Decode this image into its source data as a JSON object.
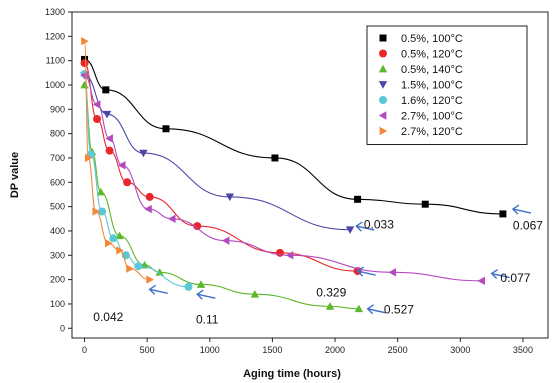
{
  "chart_data": {
    "type": "scatter",
    "xlabel": "Aging time (hours)",
    "ylabel": "DP value",
    "xlim": [
      -100,
      3700
    ],
    "ylim": [
      -40,
      1300
    ],
    "xticks": [
      0,
      500,
      1000,
      1500,
      2000,
      2500,
      3000,
      3500
    ],
    "yticks": [
      0,
      100,
      200,
      300,
      400,
      500,
      600,
      700,
      800,
      900,
      1000,
      1100,
      1200,
      1300
    ],
    "legend_position": "top-right",
    "series": [
      {
        "name": "0.5%, 100°C",
        "color": "#000000",
        "marker": "square",
        "x": [
          0,
          170,
          650,
          1520,
          2180,
          2720,
          3340
        ],
        "y": [
          1105,
          980,
          820,
          700,
          530,
          510,
          470
        ]
      },
      {
        "name": "0.5%, 120°C",
        "color": "#e8262b",
        "marker": "circle",
        "x": [
          0,
          100,
          200,
          340,
          520,
          900,
          1560,
          2180
        ],
        "y": [
          1090,
          860,
          730,
          600,
          540,
          420,
          310,
          235
        ]
      },
      {
        "name": "0.5%, 140°C",
        "color": "#5ab82a",
        "marker": "triangle-up",
        "x": [
          0,
          60,
          130,
          280,
          480,
          600,
          930,
          1360,
          1960,
          2190
        ],
        "y": [
          1000,
          725,
          560,
          380,
          260,
          230,
          180,
          140,
          90,
          80
        ]
      },
      {
        "name": "1.5%, 100°C",
        "color": "#4b47a8",
        "marker": "triangle-down",
        "x": [
          0,
          180,
          470,
          1160,
          2120
        ],
        "y": [
          1040,
          880,
          720,
          540,
          405
        ]
      },
      {
        "name": "1.6%, 120°C",
        "color": "#5bc8d6",
        "marker": "circle",
        "x": [
          0,
          50,
          140,
          230,
          330,
          430,
          830
        ],
        "y": [
          1045,
          715,
          480,
          370,
          300,
          255,
          170
        ]
      },
      {
        "name": "2.7%, 100°C",
        "color": "#b44ac0",
        "marker": "triangle-left",
        "x": [
          0,
          100,
          200,
          300,
          510,
          700,
          1130,
          1640,
          2460,
          3170
        ],
        "y": [
          1040,
          920,
          780,
          670,
          490,
          450,
          360,
          300,
          230,
          195
        ]
      },
      {
        "name": "2.7%, 120°C",
        "color": "#f5873a",
        "marker": "triangle-right",
        "x": [
          0,
          30,
          90,
          190,
          280,
          360,
          520
        ],
        "y": [
          1180,
          700,
          480,
          350,
          320,
          245,
          200
        ]
      }
    ],
    "annotations": [
      {
        "text": "0.067",
        "x": 3480,
        "y": 470,
        "arrow_tip": [
          3420,
          490
        ],
        "text_pos": [
          3420,
          405
        ]
      },
      {
        "text": "0.033",
        "x": 2240,
        "y": 400,
        "arrow_tip": [
          2170,
          420
        ],
        "text_pos": [
          2230,
          410
        ]
      },
      {
        "text": "0.077",
        "x": 3320,
        "y": 210,
        "arrow_tip": [
          3250,
          225
        ],
        "text_pos": [
          3320,
          190
        ]
      },
      {
        "text": "0.329",
        "x": 2220,
        "y": 90,
        "arrow_tip": [
          2180,
          235
        ],
        "text_pos": [
          1850,
          130
        ]
      },
      {
        "text": "0.527",
        "x": 2360,
        "y": 80,
        "arrow_tip": [
          2260,
          80
        ],
        "text_pos": [
          2390,
          60
        ]
      },
      {
        "text": "0.042",
        "x": 430,
        "y": 50,
        "arrow_tip": [
          520,
          160
        ],
        "text_pos": [
          70,
          30
        ]
      },
      {
        "text": "0.11",
        "x": 900,
        "y": 40,
        "arrow_tip": [
          900,
          140
        ],
        "text_pos": [
          890,
          20
        ]
      }
    ]
  }
}
